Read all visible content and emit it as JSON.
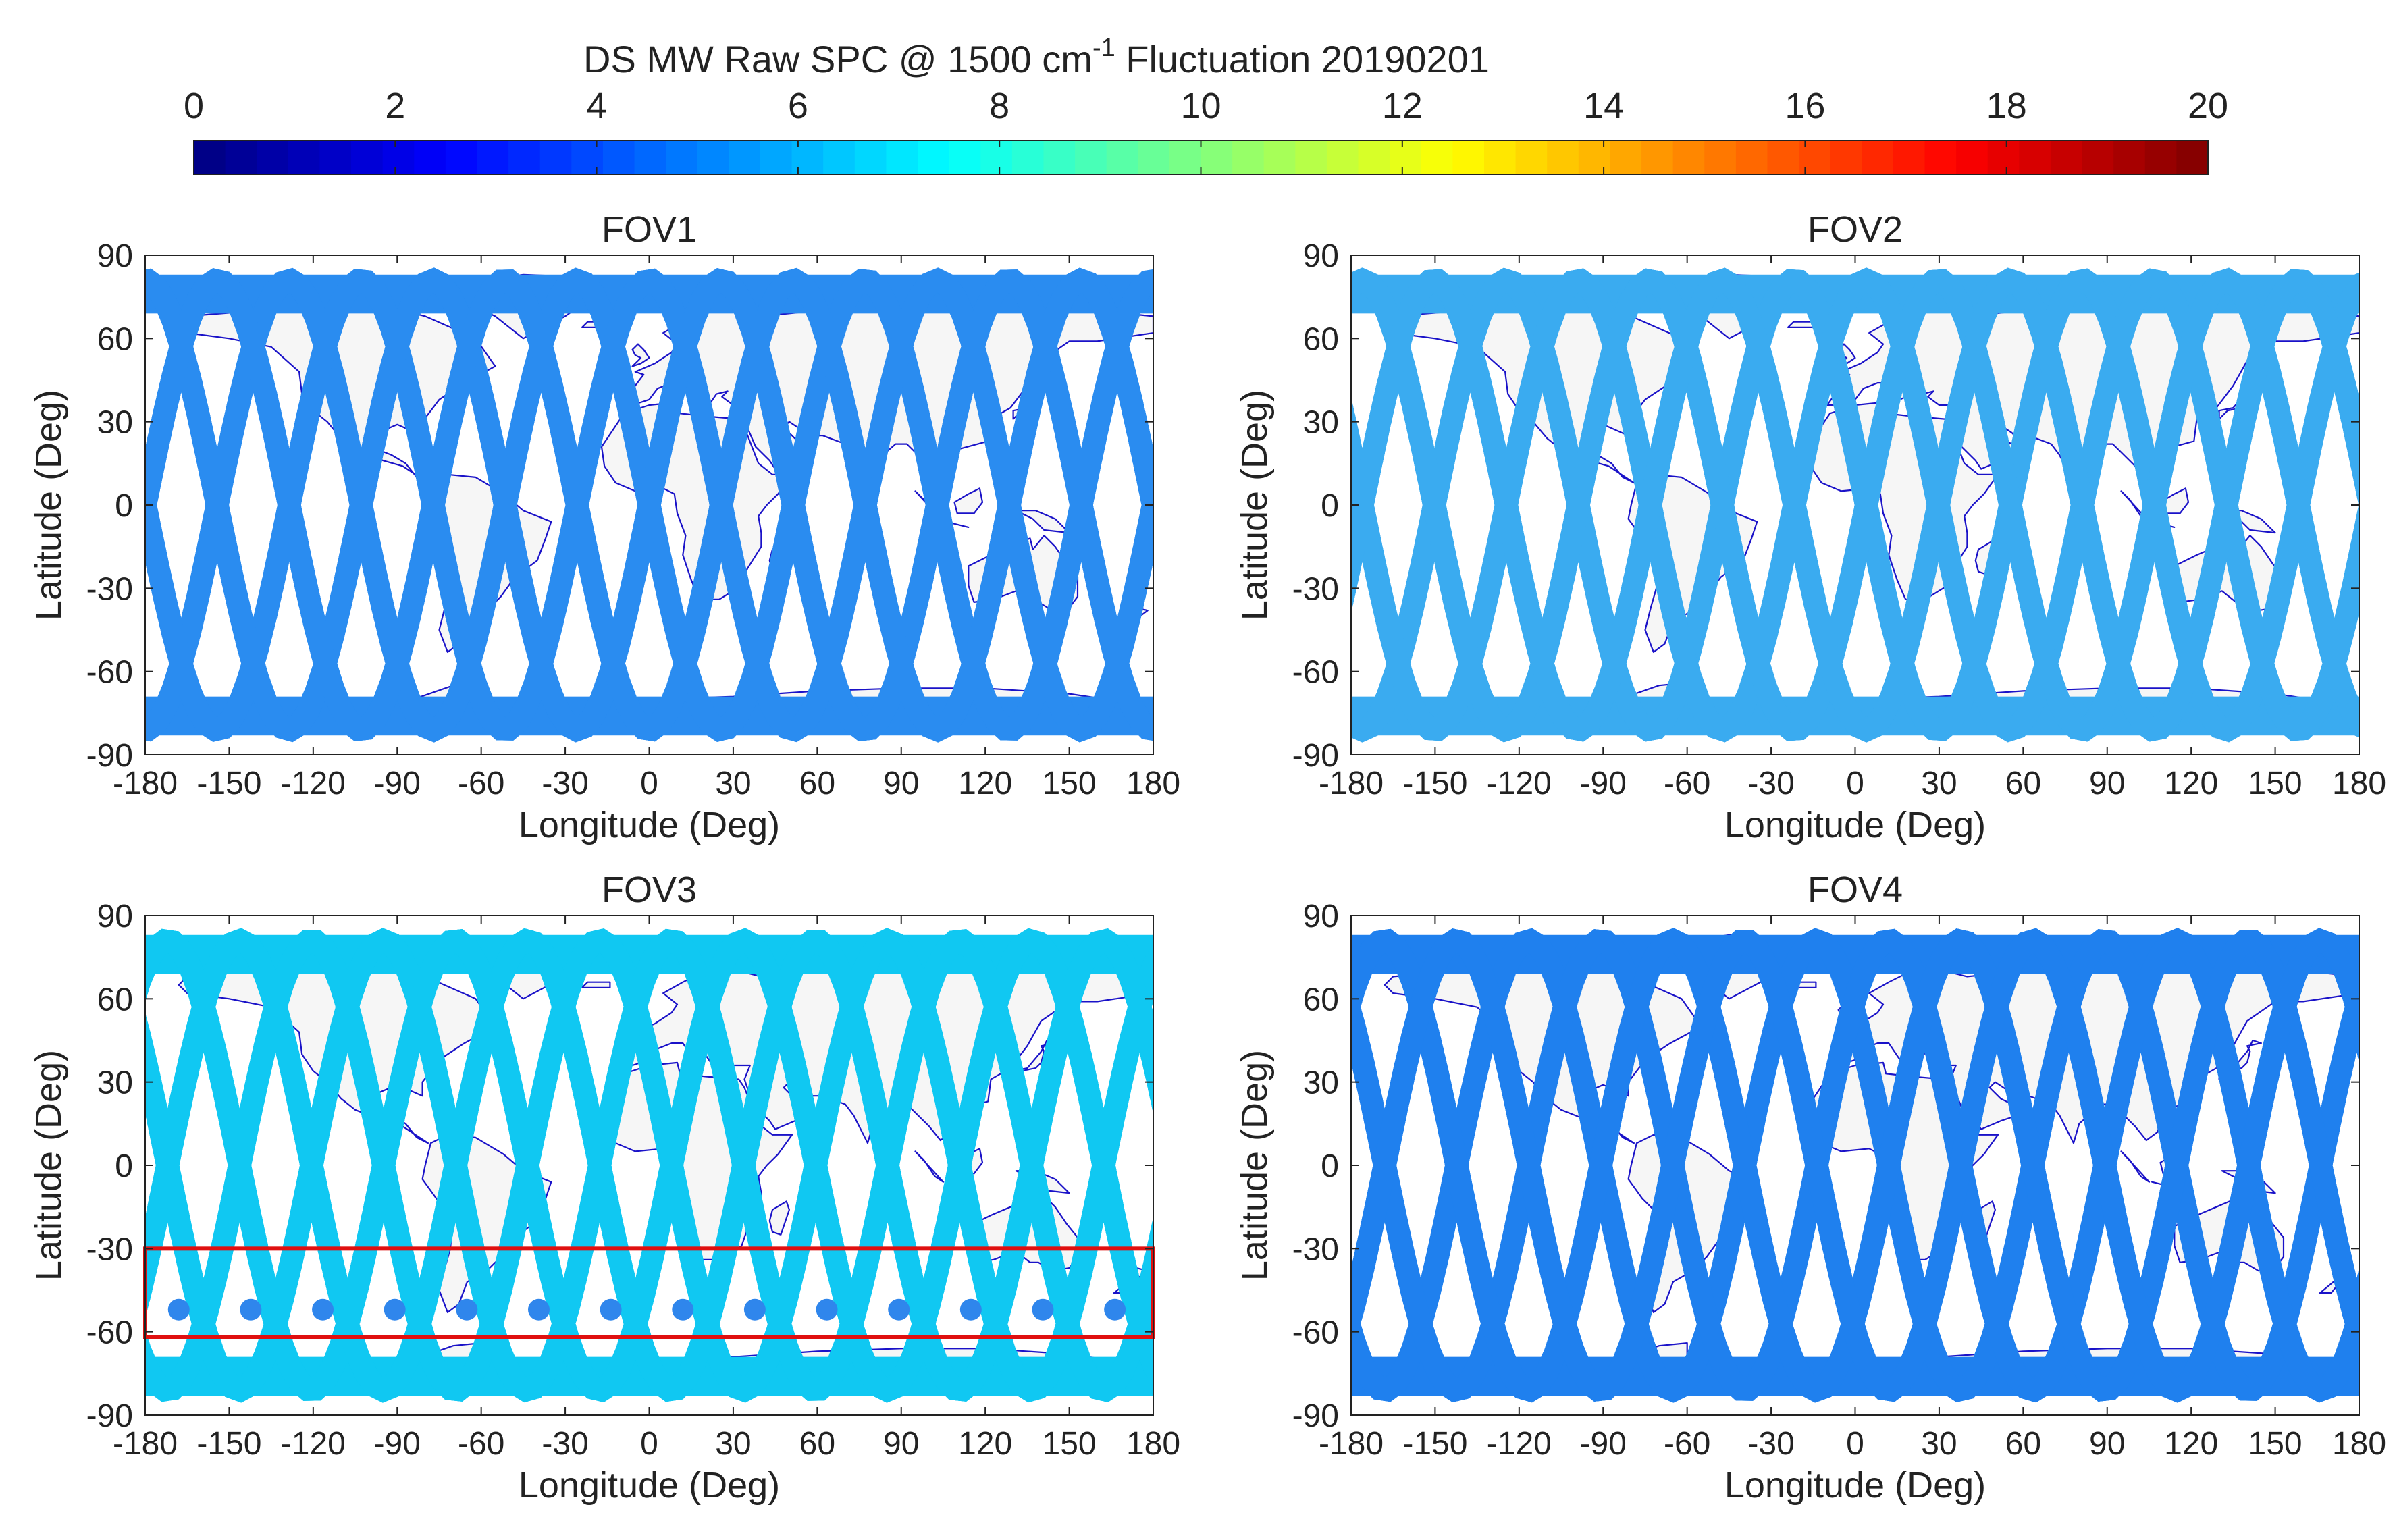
{
  "figure": {
    "title_main": "DS MW Raw SPC @  1500 cm",
    "title_sup": "-1",
    "title_tail": " Fluctuation 20190201"
  },
  "colorbar": {
    "ticks": [
      "0",
      "2",
      "4",
      "6",
      "8",
      "10",
      "12",
      "14",
      "16",
      "18",
      "20"
    ],
    "range": [
      0,
      20
    ],
    "n_segments": 64,
    "colormap": "jet"
  },
  "chart_data": [
    {
      "type": "scatter",
      "title": "FOV1",
      "xlabel": "Longitude (Deg)",
      "ylabel": "Latitude (Deg)",
      "xlim": [
        -180,
        180
      ],
      "ylim": [
        -90,
        90
      ],
      "xticks": [
        "-180",
        "-150",
        "-120",
        "-90",
        "-60",
        "-30",
        "0",
        "30",
        "60",
        "90",
        "120",
        "150",
        "180"
      ],
      "yticks": [
        "90",
        "60",
        "30",
        "0",
        "-30",
        "-60",
        "-90"
      ],
      "orbit_tracks": 14,
      "max_abs_latitude": 81,
      "track_value": 4.7,
      "track_color": "#2a8cf0"
    },
    {
      "type": "scatter",
      "title": "FOV2",
      "xlabel": "Longitude (Deg)",
      "ylabel": "Latitude (Deg)",
      "xlim": [
        -180,
        180
      ],
      "ylim": [
        -90,
        90
      ],
      "xticks": [
        "-180",
        "-150",
        "-120",
        "-90",
        "-60",
        "-30",
        "0",
        "30",
        "60",
        "90",
        "120",
        "150",
        "180"
      ],
      "yticks": [
        "90",
        "60",
        "30",
        "0",
        "-30",
        "-60",
        "-90"
      ],
      "orbit_tracks": 14,
      "max_abs_latitude": 81,
      "track_value": 5.8,
      "track_color": "#3aabf0"
    },
    {
      "type": "scatter",
      "title": "FOV3",
      "xlabel": "Longitude (Deg)",
      "ylabel": "Latitude (Deg)",
      "xlim": [
        -180,
        180
      ],
      "ylim": [
        -90,
        90
      ],
      "xticks": [
        "-180",
        "-150",
        "-120",
        "-90",
        "-60",
        "-30",
        "0",
        "30",
        "60",
        "90",
        "120",
        "150",
        "180"
      ],
      "yticks": [
        "90",
        "60",
        "30",
        "0",
        "-30",
        "-60",
        "-90"
      ],
      "orbit_tracks": 14,
      "max_abs_latitude": 81,
      "track_value": 6.7,
      "track_color": "#10c8f2",
      "highlight_box": {
        "lon": [
          -180,
          180
        ],
        "lat": [
          -62,
          -30
        ],
        "color": "#e01010"
      },
      "anomaly_value": 4.5,
      "anomaly_color": "#2f86ec"
    },
    {
      "type": "scatter",
      "title": "FOV4",
      "xlabel": "Longitude (Deg)",
      "ylabel": "Latitude (Deg)",
      "xlim": [
        -180,
        180
      ],
      "ylim": [
        -90,
        90
      ],
      "xticks": [
        "-180",
        "-150",
        "-120",
        "-90",
        "-60",
        "-30",
        "0",
        "30",
        "60",
        "90",
        "120",
        "150",
        "180"
      ],
      "yticks": [
        "90",
        "60",
        "30",
        "0",
        "-30",
        "-60",
        "-90"
      ],
      "orbit_tracks": 14,
      "max_abs_latitude": 81,
      "track_value": 4.4,
      "track_color": "#1f80ee"
    }
  ],
  "map": {
    "land_color": "#f6f6f6",
    "coast_color": "#1a12c8"
  }
}
